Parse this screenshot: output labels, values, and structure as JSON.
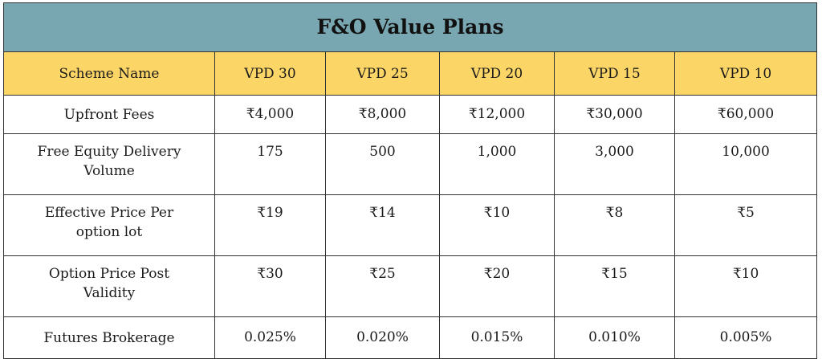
{
  "table": {
    "title": "F&O Value Plans",
    "header": [
      "Scheme Name",
      "VPD 30",
      "VPD 25",
      "VPD 20",
      "VPD 15",
      "VPD 10"
    ],
    "rows": [
      [
        "Upfront Fees",
        "₹4,000",
        "₹8,000",
        "₹12,000",
        "₹30,000",
        "₹60,000"
      ],
      [
        "Free Equity Delivery Volume",
        "175",
        "500",
        "1,000",
        "3,000",
        "10,000"
      ],
      [
        "Effective Price Per option lot",
        "₹19",
        "₹14",
        "₹10",
        "₹8",
        "₹5"
      ],
      [
        "Option Price Post Validity",
        "₹30",
        "₹25",
        "₹20",
        "₹15",
        "₹10"
      ],
      [
        "Futures Brokerage",
        "0.025%",
        "0.020%",
        "0.015%",
        "0.010%",
        "0.005%"
      ]
    ]
  }
}
